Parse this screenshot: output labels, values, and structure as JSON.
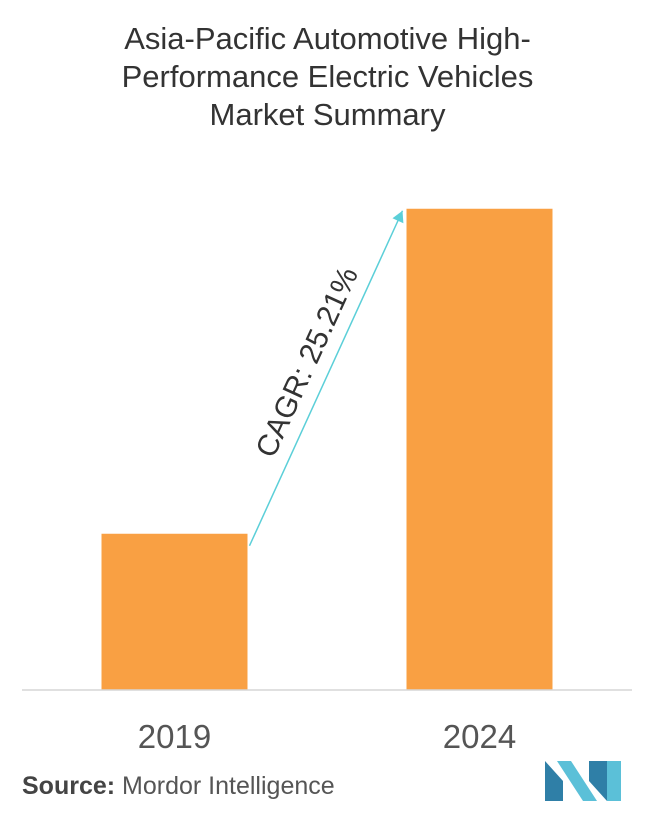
{
  "title_lines": [
    "Asia-Pacific Automotive High-",
    "Performance Electric Vehicles",
    "Market Summary"
  ],
  "chart_data": {
    "type": "bar",
    "title": "Asia-Pacific Automotive High-Performance Electric Vehicles Market Summary",
    "categories": [
      "2019",
      "2024"
    ],
    "values": [
      1.0,
      3.08
    ],
    "bar_color": "#f9a043",
    "annotation": "CAGR: 25.21%",
    "arrow_color": "#5bcfd8",
    "xlabel": "",
    "ylabel": "",
    "ylim": [
      0,
      3.2
    ],
    "grid": false,
    "legend": "none"
  },
  "source": {
    "label": "Source:",
    "text": "Mordor Intelligence"
  },
  "logo": {
    "icon": "mordor-intelligence-logo",
    "colors": [
      "#2f7fa7",
      "#5bc0d8"
    ]
  }
}
